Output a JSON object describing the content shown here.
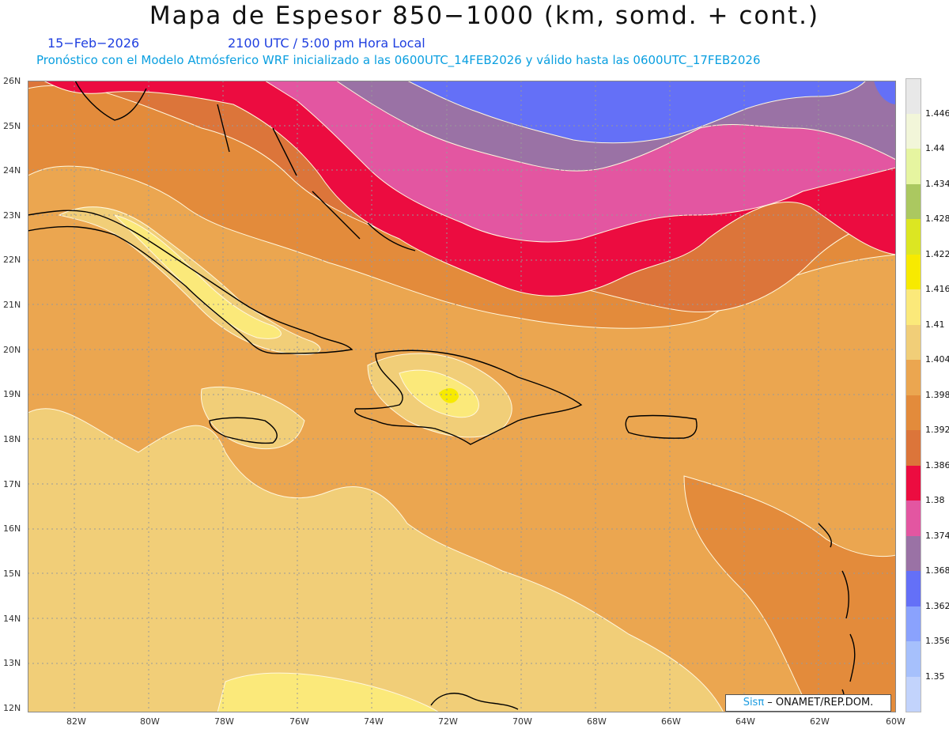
{
  "header": {
    "title": "Mapa de Espesor 850−1000 (km, somd. + cont.)",
    "date": "15−Feb−2026",
    "time": "2100 UTC / 5:00 pm Hora Local",
    "model_line": "Pronóstico con el Modelo Atmósferico WRF inicializado a las 0600UTC_14FEB2026 y válido hasta las  0600UTC_17FEB2026"
  },
  "map": {
    "lat_ticks": [
      "26N",
      "25N",
      "24N",
      "23N",
      "22N",
      "21N",
      "20N",
      "19N",
      "18N",
      "17N",
      "16N",
      "15N",
      "14N",
      "13N",
      "12N"
    ],
    "lon_ticks": [
      "82W",
      "80W",
      "78W",
      "76W",
      "74W",
      "72W",
      "70W",
      "68W",
      "66W",
      "64W",
      "62W",
      "60W"
    ],
    "extent": {
      "lon_min": -83.3,
      "lon_max": -60.0,
      "lat_min": 11.9,
      "lat_max": 26.0
    }
  },
  "colorbar": {
    "labels": [
      "1.446",
      "1.44",
      "1.434",
      "1.428",
      "1.422",
      "1.416",
      "1.41",
      "1.404",
      "1.398",
      "1.392",
      "1.386",
      "1.38",
      "1.374",
      "1.368",
      "1.362",
      "1.356",
      "1.35"
    ],
    "colors": [
      "#e8e8e8",
      "#f2f6d9",
      "#e6f5a0",
      "#abc860",
      "#dce622",
      "#f7ea00",
      "#fbe97a",
      "#f1ce78",
      "#eba650",
      "#e38b3b",
      "#dc753a",
      "#ec0c40",
      "#e356a1",
      "#9a72a5",
      "#6470f7",
      "#8aa2fd",
      "#a6c0fc",
      "#c2d3fc"
    ]
  },
  "credit": {
    "logo": "Sisπ",
    "text": " – ONAMET/REP.DOM."
  }
}
